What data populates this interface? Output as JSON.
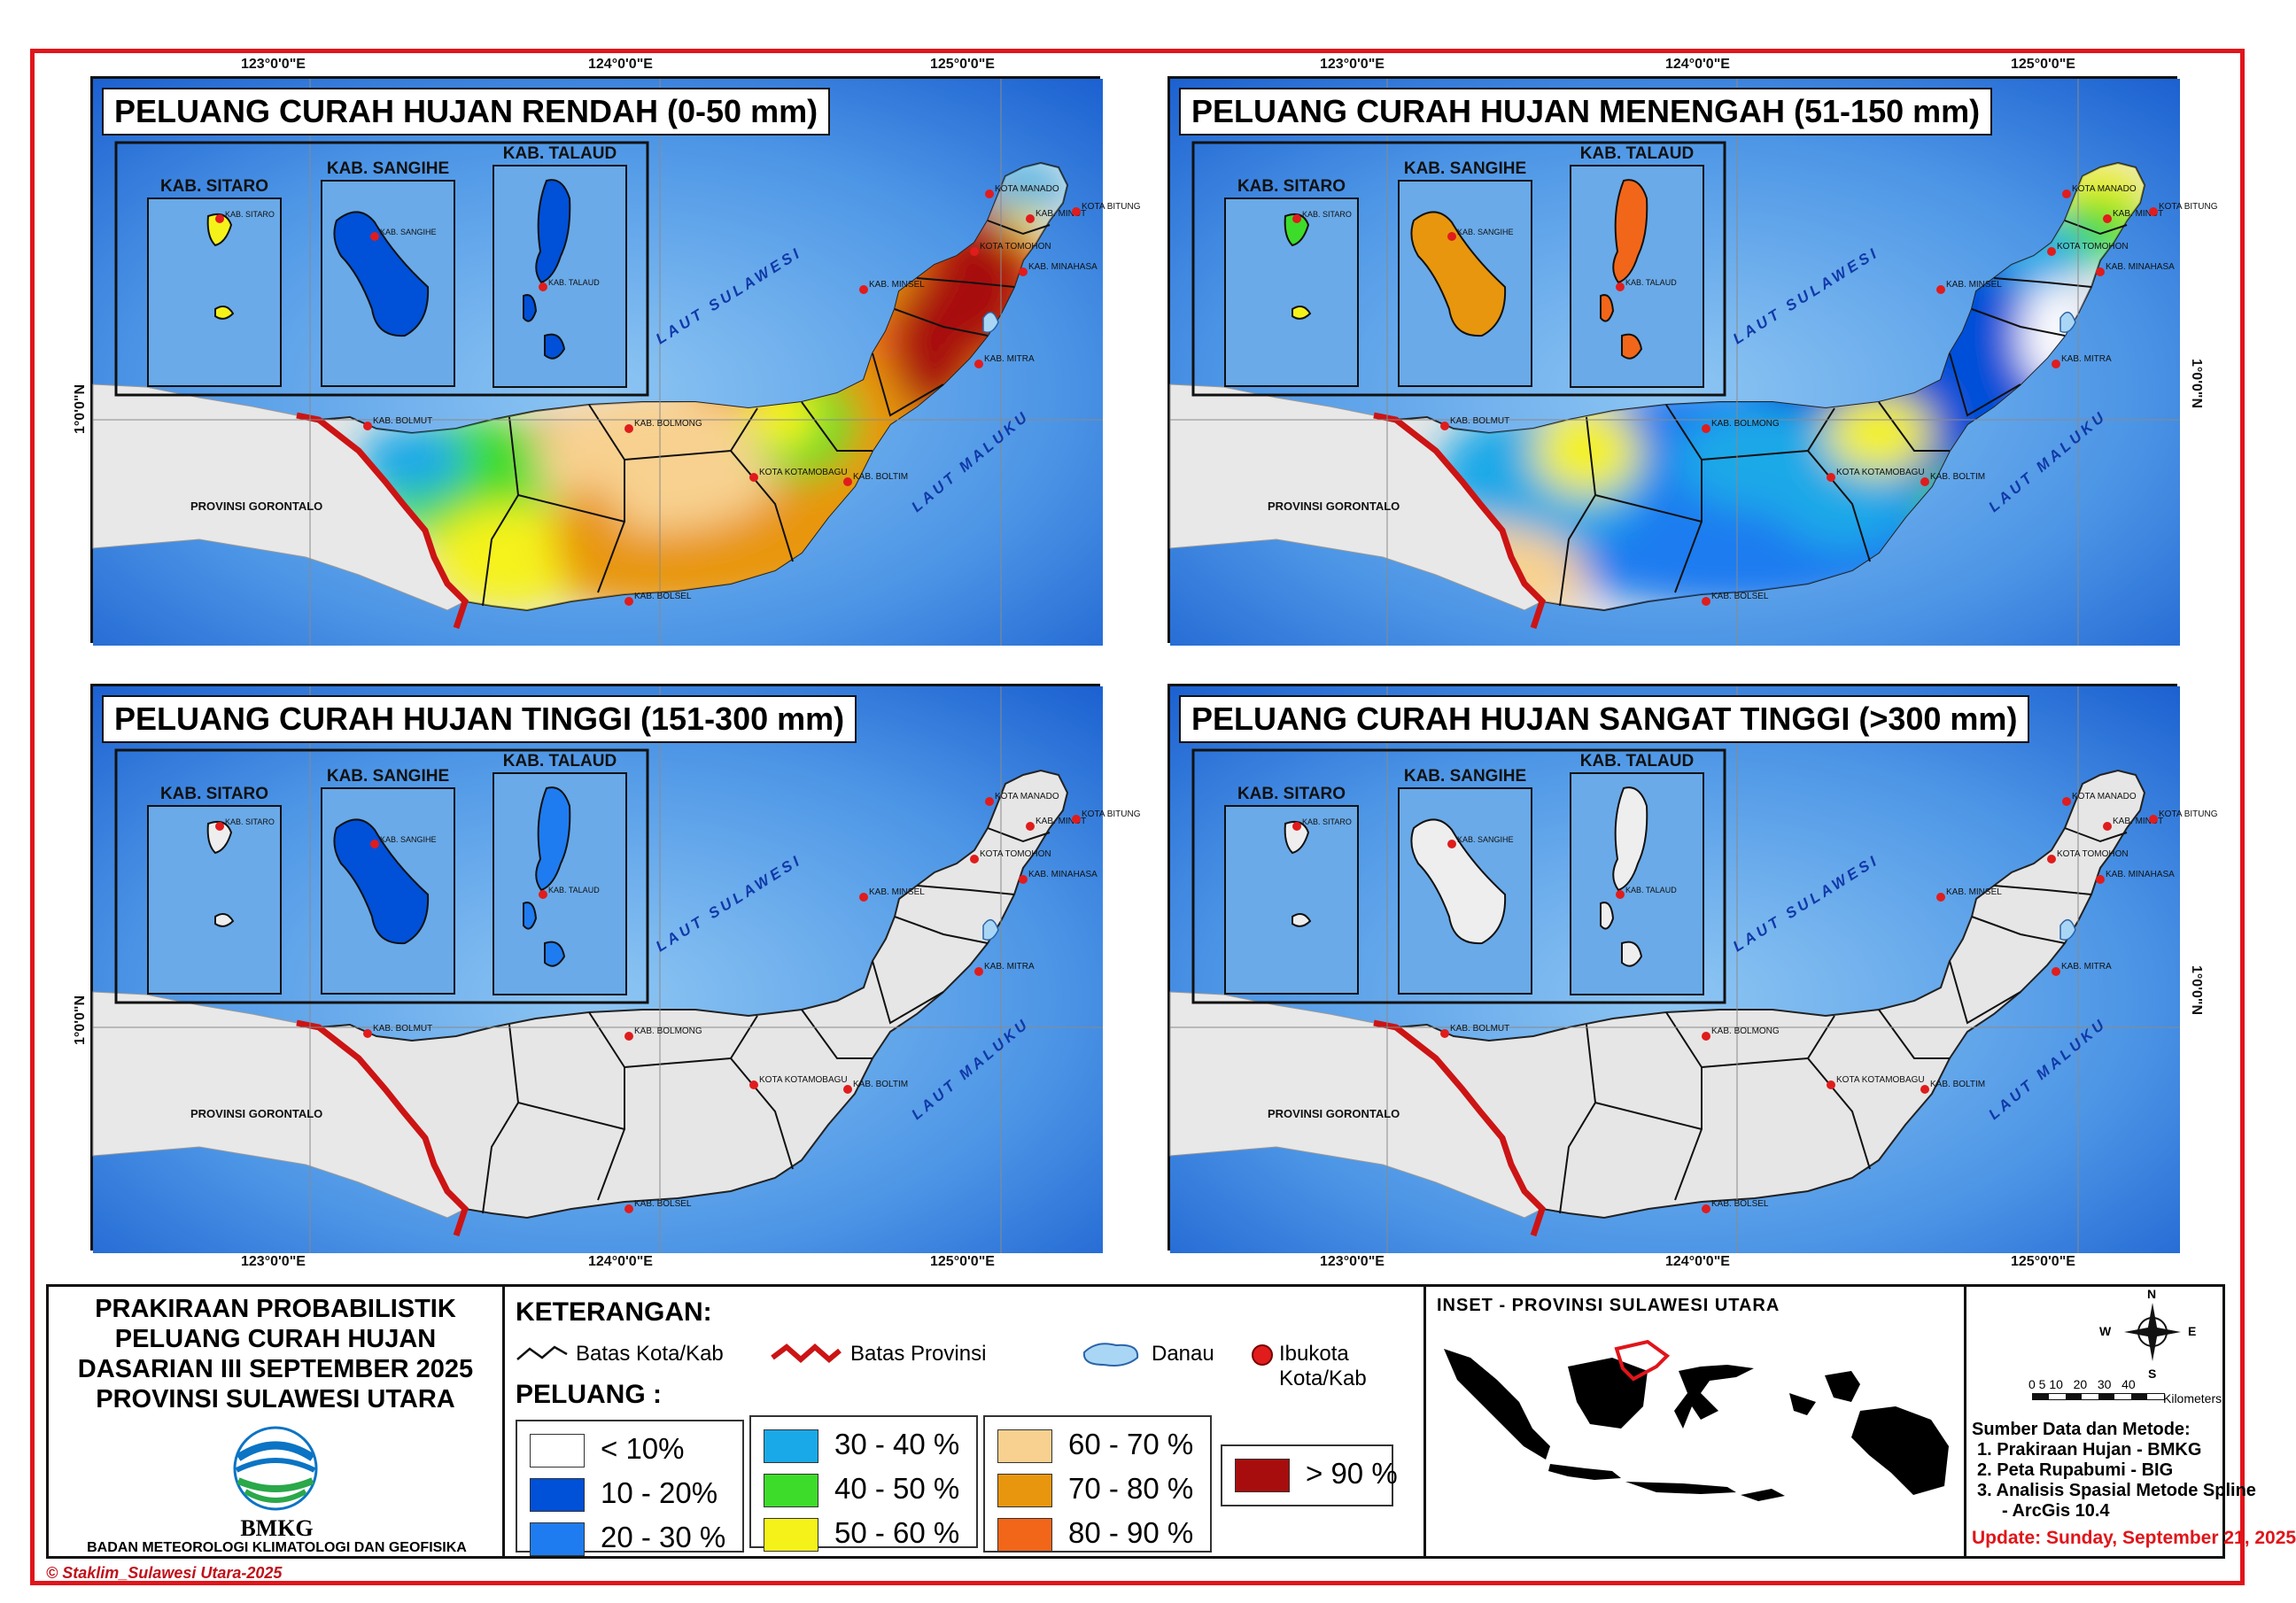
{
  "panels": [
    {
      "title": "PELUANG CURAH HUJAN RENDAH (0-50 mm)",
      "scheme": "rendah"
    },
    {
      "title": "PELUANG CURAH HUJAN MENENGAH (51-150 mm)",
      "scheme": "menengah"
    },
    {
      "title": "PELUANG CURAH HUJAN TINGGI (151-300 mm)",
      "scheme": "tinggi"
    },
    {
      "title": "PELUANG CURAH HUJAN SANGAT TINGGI (>300 mm)",
      "scheme": "sangat"
    }
  ],
  "coords": {
    "lon1": "123°0'0\"E",
    "lon2": "124°0'0\"E",
    "lon3": "125°0'0\"E",
    "lat": "1°0'0\"N"
  },
  "map_labels": {
    "sitaro": "KAB. SITARO",
    "sangihe": "KAB. SANGIHE",
    "talaud": "KAB. TALAUD",
    "laut_sulawesi": "LAUT SULAWESI",
    "laut_maluku": "LAUT MALUKU",
    "gorontalo": "PROVINSI GORONTALO",
    "kab_sitaro": "KAB. SITARO",
    "kab_sangihe": "KAB. SANGIHE",
    "kab_talaud": "KAB. TALAUD",
    "manado": "KOTA MANADO",
    "minut": "KAB. MINUT",
    "bitung": "KOTA BITUNG",
    "tomohon": "KOTA TOMOHON",
    "minahasa": "KAB. MINAHASA",
    "minsel": "KAB. MINSEL",
    "mitra": "KAB. MITRA",
    "bolmut": "KAB. BOLMUT",
    "bolmong": "KAB. BOLMONG",
    "kotamobagu": "KOTA KOTAMOBAGU",
    "boltim": "KAB. BOLTIM",
    "bolsel": "KAB. BOLSEL"
  },
  "info": {
    "line1": "PRAKIRAAN PROBABILISTIK",
    "line2": "PELUANG CURAH HUJAN",
    "line3": "DASARIAN III SEPTEMBER 2025",
    "line4": "PROVINSI SULAWESI UTARA",
    "logo_text": "BMKG",
    "agency": "BADAN METEOROLOGI KLIMATOLOGI DAN GEOFISIKA"
  },
  "legend": {
    "heading": "KETERANGAN:",
    "batas_kota": "Batas Kota/Kab",
    "batas_prov": "Batas Provinsi",
    "danau": "Danau",
    "ibukota": "Ibukota Kota/Kab",
    "peluang": "PELUANG :",
    "classes": [
      {
        "label": "< 10%",
        "color": "#ffffff"
      },
      {
        "label": "10 - 20%",
        "color": "#0050d8"
      },
      {
        "label": "20 - 30 %",
        "color": "#1e7cf0"
      },
      {
        "label": "30 - 40 %",
        "color": "#1aa9e8"
      },
      {
        "label": "40 - 50 %",
        "color": "#3ddc2a"
      },
      {
        "label": "50 - 60 %",
        "color": "#f5f21a"
      },
      {
        "label": "60 - 70 %",
        "color": "#f8d190"
      },
      {
        "label": "70 - 80 %",
        "color": "#e8960e"
      },
      {
        "label": "80 - 90 %",
        "color": "#f2661a"
      },
      {
        "label": "> 90 %",
        "color": "#a80d0d"
      }
    ]
  },
  "inset": {
    "title": "INSET - PROVINSI SULAWESI UTARA"
  },
  "source": {
    "north": "N",
    "south": "S",
    "east": "E",
    "west": "W",
    "scale_ticks": "0 5 10   20   30   40",
    "scale_unit": "Kilometers",
    "heading": "Sumber Data dan Metode:",
    "item1": "1. Prakiraan Hujan - BMKG",
    "item2": "2. Peta Rupabumi - BIG",
    "item3": "3. Analisis Spasial Metode Spline",
    "item4": "- ArcGis 10.4",
    "update": "Update: Sunday, September 21, 2025"
  },
  "credit": "© Staklim_Sulawesi Utara-2025",
  "colors": {
    "frame": "#e0151a",
    "sea_light": "#7fbcf0",
    "sea_dark": "#1c66d6",
    "province_line": "#cc1414"
  }
}
